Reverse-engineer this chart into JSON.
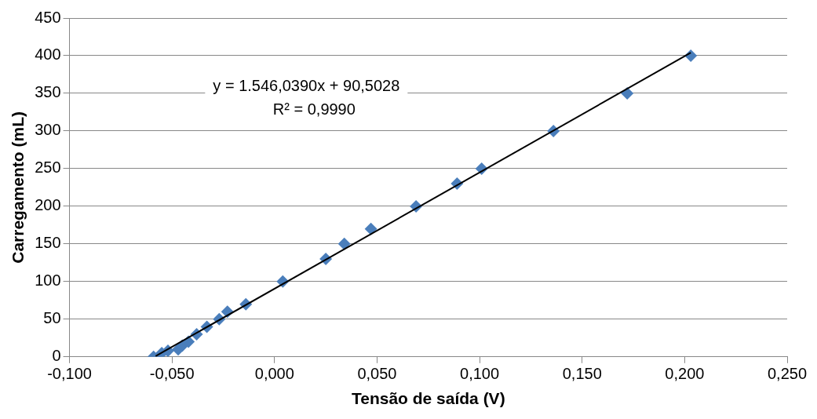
{
  "chart_data": {
    "type": "scatter",
    "xlabel": "Tensão de saída (V)",
    "ylabel": "Carregamento (mL)",
    "x": [
      -0.059,
      -0.055,
      -0.052,
      -0.047,
      -0.045,
      -0.042,
      -0.039,
      -0.038,
      -0.033,
      -0.027,
      -0.023,
      -0.014,
      0.004,
      0.025,
      0.034,
      0.047,
      0.069,
      0.089,
      0.101,
      0.136,
      0.172,
      0.203
    ],
    "series": [
      {
        "color": "#4a7ebb",
        "marker": "diamond",
        "values": [
          0,
          5,
          8,
          10,
          15,
          20,
          null,
          30,
          40,
          50,
          60,
          70,
          100,
          130,
          150,
          170,
          200,
          230,
          250,
          300,
          350,
          400
        ]
      },
      {
        "type": "line",
        "color": "#000000",
        "marker": "none",
        "x": [
          -0.058,
          0.203
        ],
        "values": [
          1,
          404
        ]
      }
    ],
    "xlim": [
      -0.1,
      0.25
    ],
    "xticks": [
      {
        "value": -0.1,
        "label": "-0,100"
      },
      {
        "value": -0.05,
        "label": "-0,050"
      },
      {
        "value": 0,
        "label": "0,000"
      },
      {
        "value": 0.05,
        "label": "0,050"
      },
      {
        "value": 0.1,
        "label": "0,100"
      },
      {
        "value": 0.15,
        "label": "0,150"
      },
      {
        "value": 0.2,
        "label": "0,200"
      },
      {
        "value": 0.25,
        "label": "0,250"
      }
    ],
    "ylim": [
      0,
      450
    ],
    "yticks": [
      0,
      50,
      100,
      150,
      200,
      250,
      300,
      350,
      400,
      450
    ],
    "grid": "y",
    "legend": false,
    "annotations": [
      "y = 1.546,0390x + 90,5028",
      "R² = 0,9990"
    ]
  }
}
